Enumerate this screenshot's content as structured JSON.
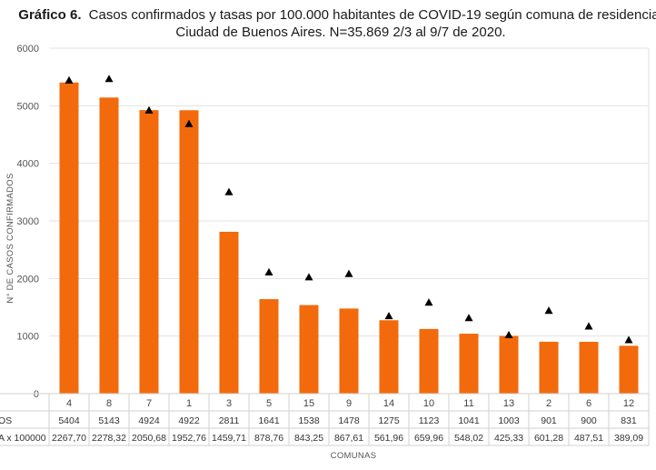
{
  "title": {
    "bold": "Gráfico 6.",
    "line1": "Casos confirmados y tasas por 100.000 habitantes de COVID-19 según comuna de residencia.",
    "line2": "Ciudad de Buenos Aires. N=35.869 2/3 al 9/7 de 2020."
  },
  "colors": {
    "bar": "#f26a0c",
    "marker": "#000000",
    "grid": "#e2e2e2",
    "table_border": "#d0d0d0"
  },
  "chart_data": {
    "type": "bar",
    "title": "Casos confirmados y tasas por 100.000 habitantes de COVID-19 según comuna de residencia. Ciudad de Buenos Aires. N=35.869 2/3 al 9/7 de 2020.",
    "xlabel": "COMUNAS",
    "ylabel": "N° DE CASOS CONFIRMADOS",
    "ylim": [
      0,
      6000
    ],
    "yticks": [
      "0",
      "1000",
      "2000",
      "3000",
      "4000",
      "5000",
      "6000"
    ],
    "categories": [
      "4",
      "8",
      "7",
      "1",
      "3",
      "5",
      "15",
      "9",
      "14",
      "10",
      "11",
      "13",
      "2",
      "6",
      "12"
    ],
    "series": [
      {
        "name": "OS",
        "kind": "bar",
        "values": [
          5404,
          5143,
          4924,
          4922,
          2811,
          1641,
          1538,
          1478,
          1275,
          1123,
          1041,
          1003,
          901,
          900,
          831
        ],
        "labels": [
          "5404",
          "5143",
          "4924",
          "4922",
          "2811",
          "1641",
          "1538",
          "1478",
          "1275",
          "1123",
          "1041",
          "1003",
          "901",
          "900",
          "831"
        ]
      },
      {
        "name": "A x 100000",
        "kind": "marker",
        "values": [
          2267.7,
          2278.32,
          2050.68,
          1952.76,
          1459.71,
          878.76,
          843.25,
          867.61,
          561.96,
          659.96,
          548.02,
          425.33,
          601.28,
          487.51,
          389.09
        ],
        "labels": [
          "2267,70",
          "2278,32",
          "2050,68",
          "1952,76",
          "1459,71",
          "878,76",
          "843,25",
          "867,61",
          "561,96",
          "659,96",
          "548,02",
          "425,33",
          "601,28",
          "487,51",
          "389,09"
        ]
      }
    ],
    "secondary_ylim": [
      0,
      2500
    ],
    "grid": true,
    "legend": "table-below"
  }
}
